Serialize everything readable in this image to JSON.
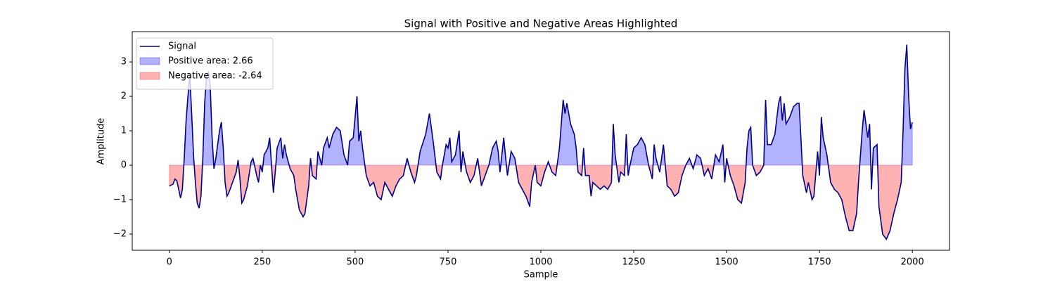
{
  "chart_data": {
    "type": "line",
    "title": "Signal with Positive and Negative Areas Highlighted",
    "xlabel": "Sample",
    "ylabel": "Amplitude",
    "x": [
      0,
      10,
      15,
      20,
      25,
      30,
      35,
      40,
      45,
      50,
      55,
      60,
      65,
      70,
      75,
      80,
      85,
      90,
      95,
      100,
      105,
      110,
      115,
      120,
      125,
      135,
      140,
      145,
      150,
      155,
      160,
      170,
      180,
      185,
      190,
      195,
      200,
      210,
      220,
      225,
      235,
      240,
      245,
      250,
      255,
      265,
      270,
      280,
      285,
      290,
      300,
      305,
      310,
      315,
      325,
      335,
      340,
      350,
      360,
      365,
      375,
      380,
      385,
      395,
      400,
      410,
      415,
      425,
      430,
      440,
      450,
      460,
      470,
      480,
      485,
      495,
      505,
      510,
      515,
      520,
      530,
      540,
      550,
      560,
      570,
      580,
      590,
      600,
      610,
      620,
      630,
      640,
      650,
      660,
      665,
      675,
      690,
      700,
      710,
      720,
      730,
      735,
      740,
      745,
      750,
      755,
      760,
      770,
      780,
      785,
      790,
      800,
      810,
      820,
      830,
      840,
      850,
      860,
      870,
      880,
      885,
      890,
      900,
      910,
      920,
      930,
      940,
      950,
      960,
      970,
      975,
      985,
      990,
      1000,
      1010,
      1020,
      1030,
      1040,
      1050,
      1060,
      1065,
      1070,
      1080,
      1090,
      1095,
      1100,
      1110,
      1115,
      1120,
      1130,
      1135,
      1140,
      1150,
      1160,
      1170,
      1180,
      1190,
      1195,
      1200,
      1210,
      1215,
      1225,
      1230,
      1235,
      1240,
      1250,
      1260,
      1270,
      1280,
      1290,
      1300,
      1305,
      1310,
      1320,
      1330,
      1340,
      1350,
      1360,
      1370,
      1380,
      1390,
      1400,
      1410,
      1420,
      1430,
      1440,
      1450,
      1460,
      1470,
      1480,
      1490,
      1495,
      1500,
      1510,
      1520,
      1530,
      1540,
      1550,
      1555,
      1560,
      1565,
      1570,
      1580,
      1590,
      1600,
      1605,
      1610,
      1620,
      1630,
      1640,
      1645,
      1650,
      1655,
      1660,
      1670,
      1680,
      1690,
      1695,
      1700,
      1705,
      1715,
      1720,
      1730,
      1735,
      1745,
      1750,
      1755,
      1760,
      1770,
      1780,
      1790,
      1800,
      1810,
      1820,
      1830,
      1840,
      1850,
      1855,
      1865,
      1870,
      1880,
      1885,
      1890,
      1895,
      1905,
      1910,
      1920,
      1930,
      1940,
      1950,
      1960,
      1970,
      1975,
      1980,
      1985,
      1990,
      1995,
      2000
    ],
    "series": [
      {
        "name": "Signal",
        "color": "#00008b",
        "values": [
          -0.6,
          -0.55,
          -0.4,
          -0.45,
          -0.7,
          -0.95,
          -0.7,
          0.2,
          1.3,
          2.0,
          2.6,
          1.5,
          0.3,
          -0.5,
          -1.1,
          -1.25,
          -0.9,
          0.2,
          1.8,
          2.6,
          2.7,
          2.3,
          0.8,
          -0.1,
          0.2,
          1.0,
          1.25,
          0.5,
          -0.5,
          -0.9,
          -0.8,
          -0.5,
          -0.2,
          0.15,
          -0.4,
          -1.1,
          -1.0,
          -0.6,
          0.1,
          0.2,
          -0.3,
          -0.5,
          0.0,
          -0.2,
          0.3,
          0.5,
          0.8,
          -0.8,
          -0.2,
          0.5,
          0.8,
          0.2,
          0.6,
          0.3,
          -0.1,
          -0.3,
          -0.7,
          -1.3,
          -1.5,
          -1.4,
          -0.6,
          0.2,
          -0.3,
          -0.4,
          0.4,
          0.0,
          0.5,
          0.8,
          0.5,
          0.9,
          1.1,
          1.0,
          0.3,
          0.0,
          0.7,
          0.8,
          2.0,
          0.7,
          1.0,
          0.5,
          -0.3,
          -0.6,
          -0.5,
          -0.9,
          -1.0,
          -0.5,
          -0.7,
          -0.9,
          -0.6,
          -0.4,
          -0.3,
          0.2,
          -0.2,
          -0.5,
          -0.3,
          0.4,
          0.9,
          1.5,
          0.7,
          -0.2,
          -0.4,
          0.0,
          0.3,
          0.6,
          0.5,
          0.8,
          0.1,
          0.3,
          1.0,
          -0.2,
          0.4,
          -0.2,
          -0.5,
          -0.3,
          0.2,
          -0.6,
          -0.3,
          0.0,
          0.5,
          0.7,
          0.4,
          -0.2,
          0.8,
          -0.3,
          0.4,
          0.2,
          -0.5,
          -0.7,
          -0.9,
          -1.2,
          -0.5,
          0.0,
          -0.5,
          -0.6,
          -0.2,
          0.1,
          -0.2,
          -0.3,
          0.5,
          1.9,
          1.5,
          1.8,
          1.2,
          0.9,
          0.5,
          -0.2,
          -0.3,
          0.5,
          -0.3,
          -0.3,
          -0.9,
          -0.5,
          -0.6,
          -0.7,
          -0.6,
          -0.7,
          -0.5,
          1.2,
          0.3,
          -0.5,
          -0.2,
          -0.3,
          0.9,
          -0.3,
          0.0,
          0.5,
          0.6,
          0.8,
          0.6,
          0.0,
          -0.4,
          0.6,
          0.2,
          -0.2,
          0.6,
          -0.6,
          -0.7,
          -0.9,
          -0.8,
          -0.3,
          0.0,
          0.2,
          -0.1,
          0.3,
          0.2,
          -0.3,
          -0.1,
          -0.4,
          0.3,
          0.1,
          0.6,
          -0.5,
          0.2,
          -0.3,
          -0.6,
          -1.0,
          -1.1,
          -0.5,
          0.5,
          1.0,
          1.1,
          0.0,
          -0.3,
          -0.2,
          0.0,
          1.9,
          0.6,
          0.6,
          0.9,
          1.8,
          2.0,
          1.3,
          1.8,
          1.2,
          1.4,
          1.7,
          1.8,
          1.8,
          0.8,
          -0.3,
          -0.8,
          -0.5,
          -1.0,
          -0.9,
          0.4,
          -0.3,
          1.4,
          0.8,
          0.3,
          -0.5,
          -0.7,
          -0.8,
          -1.0,
          -1.5,
          -1.9,
          -1.9,
          -1.4,
          -0.5,
          1.0,
          1.6,
          0.8,
          1.2,
          -0.7,
          0.5,
          0.6,
          -1.2,
          -2.0,
          -2.15,
          -1.9,
          -1.4,
          -1.0,
          -0.5,
          1.0,
          2.8,
          3.5,
          2.0,
          1.05,
          1.25
        ]
      }
    ],
    "fills": [
      {
        "name": "Positive area: 2.66",
        "color": "#0000ff",
        "side": "positive"
      },
      {
        "name": "Negative area: -2.64",
        "color": "#ff0000",
        "side": "negative"
      }
    ],
    "xlim": [
      -100,
      2100
    ],
    "ylim": [
      -2.47,
      3.88
    ],
    "xticks": [
      0,
      250,
      500,
      750,
      1000,
      1250,
      1500,
      1750,
      2000
    ],
    "yticks": [
      {
        "value": -2,
        "label": "−2"
      },
      {
        "value": -1,
        "label": "−1"
      },
      0,
      1,
      2,
      3
    ],
    "grid": false,
    "legend": "upper-left"
  }
}
